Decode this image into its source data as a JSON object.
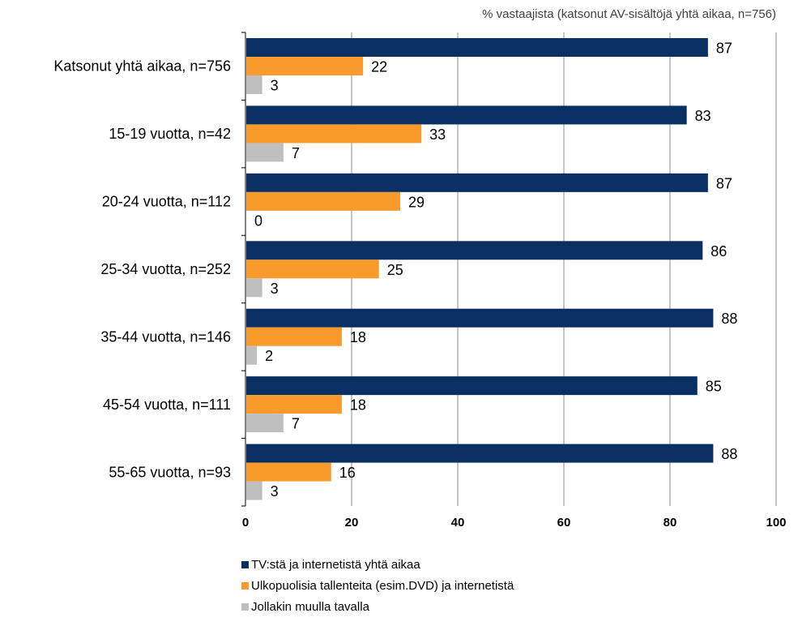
{
  "chart_data": {
    "type": "bar",
    "orientation": "horizontal",
    "title": "% vastaajista (katsonut AV-sisältöjä yhtä aikaa, n=756)",
    "categories": [
      "Katsonut yhtä aikaa, n=756",
      "15-19 vuotta, n=42",
      "20-24 vuotta, n=112",
      "25-34 vuotta, n=252",
      "35-44 vuotta, n=146",
      "45-54 vuotta, n=111",
      "55-65 vuotta, n=93"
    ],
    "series": [
      {
        "name": "TV:stä ja internetistä yhtä aikaa",
        "color": "#0a2f63",
        "values": [
          87,
          83,
          87,
          86,
          88,
          85,
          88
        ]
      },
      {
        "name": "Ulkopuolisia tallenteita (esim.DVD) ja internetistä",
        "color": "#f99a2d",
        "values": [
          22,
          33,
          29,
          25,
          18,
          18,
          16
        ]
      },
      {
        "name": "Jollakin muulla tavalla",
        "color": "#bfbfbf",
        "values": [
          3,
          7,
          0,
          3,
          2,
          7,
          3
        ]
      }
    ],
    "xlim": [
      0,
      100
    ],
    "xticks": [
      "0",
      "20",
      "40",
      "60",
      "80",
      "100"
    ],
    "grid": true,
    "legend_position": "bottom"
  }
}
